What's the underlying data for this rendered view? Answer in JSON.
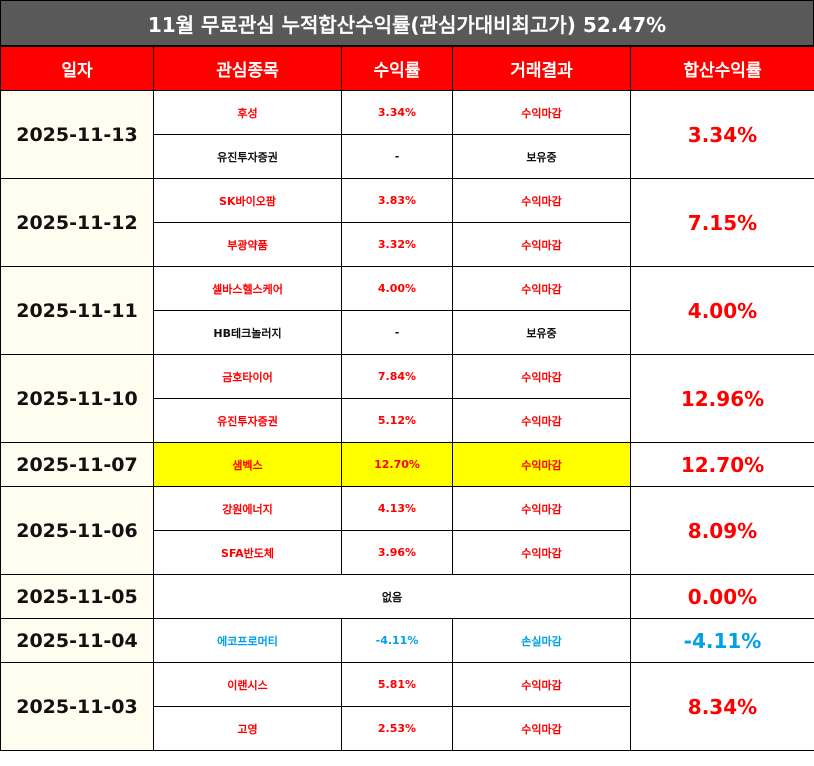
{
  "title": "11월 무료관심 누적합산수익률(관심가대비최고가) 52.47%",
  "headers": [
    "일자",
    "관심종목",
    "수익률",
    "거래결과",
    "합산수익률"
  ],
  "colors": {
    "header_bg": "#ff0000",
    "title_bg": "#595959",
    "profit": "#ff0000",
    "loss": "#00a0e9",
    "highlight": "#ffff00"
  },
  "days": [
    {
      "date": "2025-11-13",
      "total": "3.34%",
      "rows": [
        {
          "stock": "후성",
          "return": "3.34%",
          "result": "수익마감"
        },
        {
          "stock": "유진투자증권",
          "return": "-",
          "result": "보유중"
        }
      ]
    },
    {
      "date": "2025-11-12",
      "total": "7.15%",
      "rows": [
        {
          "stock": "SK바이오팜",
          "return": "3.83%",
          "result": "수익마감"
        },
        {
          "stock": "부광약품",
          "return": "3.32%",
          "result": "수익마감"
        }
      ]
    },
    {
      "date": "2025-11-11",
      "total": "4.00%",
      "rows": [
        {
          "stock": "셀바스헬스케어",
          "return": "4.00%",
          "result": "수익마감"
        },
        {
          "stock": "HB테크놀러지",
          "return": "-",
          "result": "보유중"
        }
      ]
    },
    {
      "date": "2025-11-10",
      "total": "12.96%",
      "rows": [
        {
          "stock": "금호타이어",
          "return": "7.84%",
          "result": "수익마감"
        },
        {
          "stock": "유진투자증권",
          "return": "5.12%",
          "result": "수익마감"
        }
      ]
    },
    {
      "date": "2025-11-07",
      "total": "12.70%",
      "rows": [
        {
          "stock": "샘벡스",
          "return": "12.70%",
          "result": "수익마감"
        }
      ]
    },
    {
      "date": "2025-11-06",
      "total": "8.09%",
      "rows": [
        {
          "stock": "강원에너지",
          "return": "4.13%",
          "result": "수익마감"
        },
        {
          "stock": "SFA반도체",
          "return": "3.96%",
          "result": "수익마감"
        }
      ]
    },
    {
      "date": "2025-11-05",
      "total": "0.00%",
      "none": "없음"
    },
    {
      "date": "2025-11-04",
      "total": "-4.11%",
      "rows": [
        {
          "stock": "에코프로머티",
          "return": "-4.11%",
          "result": "손실마감"
        }
      ]
    },
    {
      "date": "2025-11-03",
      "total": "8.34%",
      "rows": [
        {
          "stock": "이랜시스",
          "return": "5.81%",
          "result": "수익마감"
        },
        {
          "stock": "고영",
          "return": "2.53%",
          "result": "수익마감"
        }
      ]
    }
  ]
}
